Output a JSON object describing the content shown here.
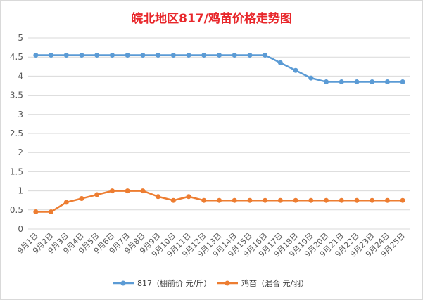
{
  "chart_data": {
    "type": "line",
    "title": "皖北地区817/鸡苗价格走势图",
    "xlabel": "",
    "ylabel": "",
    "ylim": [
      0,
      5
    ],
    "yticks": [
      "0",
      "0.5",
      "1",
      "1.5",
      "2",
      "2.5",
      "3",
      "3.5",
      "4",
      "4.5",
      "5"
    ],
    "grid": "horizontal",
    "legend_position": "bottom",
    "categories": [
      "9月1日",
      "9月2日",
      "9月3日",
      "9月4日",
      "9月5日",
      "9月6日",
      "9月7日",
      "9月8日",
      "9月9日",
      "9月10日",
      "9月11日",
      "9月12日",
      "9月13日",
      "9月14日",
      "9月15日",
      "9月16日",
      "9月17日",
      "9月18日",
      "9月19日",
      "9月20日",
      "9月21日",
      "9月22日",
      "9月23日",
      "9月24日",
      "9月25日"
    ],
    "series": [
      {
        "name": "817（棚前价 元/斤）",
        "color": "#5b9bd5",
        "values": [
          4.55,
          4.55,
          4.55,
          4.55,
          4.55,
          4.55,
          4.55,
          4.55,
          4.55,
          4.55,
          4.55,
          4.55,
          4.55,
          4.55,
          4.55,
          4.55,
          4.35,
          4.15,
          3.95,
          3.85,
          3.85,
          3.85,
          3.85,
          3.85,
          3.85
        ]
      },
      {
        "name": "鸡苗（混合 元/羽）",
        "color": "#ed7d31",
        "values": [
          0.45,
          0.45,
          0.7,
          0.8,
          0.9,
          1.0,
          1.0,
          1.0,
          0.85,
          0.75,
          0.85,
          0.75,
          0.75,
          0.75,
          0.75,
          0.75,
          0.75,
          0.75,
          0.75,
          0.75,
          0.75,
          0.75,
          0.75,
          0.75,
          0.75
        ]
      }
    ]
  }
}
